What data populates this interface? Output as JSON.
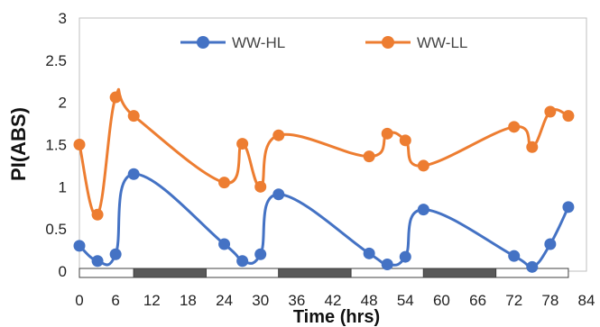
{
  "chart_data": {
    "type": "line",
    "title": "",
    "xlabel": "Time (hrs)",
    "ylabel": "PI(ABS)",
    "xlim": [
      0,
      84
    ],
    "ylim": [
      0,
      3
    ],
    "xticks": [
      0,
      6,
      12,
      18,
      24,
      30,
      36,
      42,
      48,
      54,
      60,
      66,
      72,
      78,
      84
    ],
    "yticks": [
      0,
      0.5,
      1,
      1.5,
      2,
      2.5,
      3
    ],
    "ytick_labels": [
      "0",
      "0.5",
      "1",
      "1.5",
      "2",
      "2.5",
      "3"
    ],
    "grid": false,
    "legend": "top-center",
    "photoperiod_bar": [
      {
        "start": 0,
        "end": 9,
        "phase": "light"
      },
      {
        "start": 9,
        "end": 21,
        "phase": "dark"
      },
      {
        "start": 21,
        "end": 33,
        "phase": "light"
      },
      {
        "start": 33,
        "end": 45,
        "phase": "dark"
      },
      {
        "start": 45,
        "end": 57,
        "phase": "light"
      },
      {
        "start": 57,
        "end": 69,
        "phase": "dark"
      },
      {
        "start": 69,
        "end": 81,
        "phase": "light"
      }
    ],
    "series": [
      {
        "name": "WW-HL",
        "color": "#4472C4",
        "x": [
          0,
          3,
          6,
          9,
          24,
          27,
          30,
          33,
          48,
          51,
          54,
          57,
          72,
          75,
          78,
          81
        ],
        "y": [
          0.3,
          0.12,
          0.2,
          1.15,
          0.32,
          0.12,
          0.2,
          0.91,
          0.21,
          0.08,
          0.17,
          0.73,
          0.18,
          0.05,
          0.32,
          0.76
        ]
      },
      {
        "name": "WW-LL",
        "color": "#ED7D31",
        "x": [
          0,
          3,
          6,
          9,
          24,
          27,
          30,
          33,
          48,
          51,
          54,
          57,
          72,
          75,
          78,
          81
        ],
        "y": [
          1.5,
          0.67,
          2.06,
          1.84,
          1.05,
          1.51,
          1.0,
          1.61,
          1.36,
          1.63,
          1.55,
          1.25,
          1.71,
          1.47,
          1.89,
          1.84
        ]
      }
    ]
  }
}
